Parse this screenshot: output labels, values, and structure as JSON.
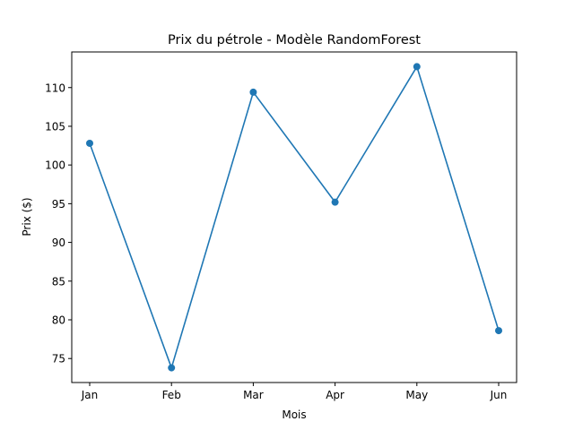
{
  "chart_data": {
    "type": "line",
    "title": "Prix du pétrole - Modèle RandomForest",
    "xlabel": "Mois",
    "ylabel": "Prix ($)",
    "categories": [
      "Jan",
      "Feb",
      "Mar",
      "Apr",
      "May",
      "Jun"
    ],
    "series": [
      {
        "values": [
          102.8,
          73.8,
          109.4,
          95.2,
          112.7,
          78.6
        ],
        "color": "#1f77b4",
        "marker": "circle"
      }
    ],
    "ylim": [
      71.9,
      114.6
    ],
    "yticks": [
      75,
      80,
      85,
      90,
      95,
      100,
      105,
      110
    ],
    "grid": false,
    "legend": false
  }
}
